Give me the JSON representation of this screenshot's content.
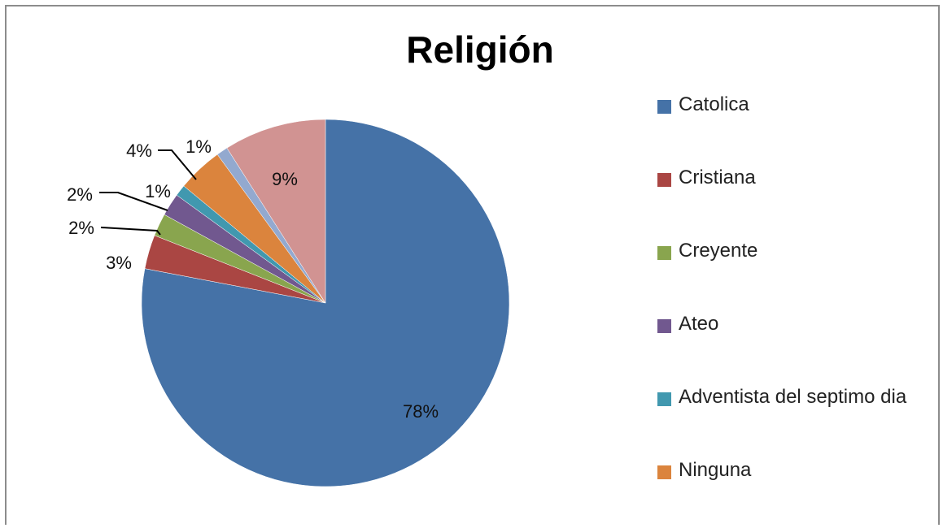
{
  "chart_data": {
    "type": "pie",
    "title": "Religión",
    "legend_position": "right",
    "series": [
      {
        "name": "Catolica",
        "value": 78,
        "label": "78%",
        "color": "#4572A7"
      },
      {
        "name": "Cristiana",
        "value": 3,
        "label": "3%",
        "color": "#AA4643"
      },
      {
        "name": "Creyente",
        "value": 2,
        "label": "2%",
        "color": "#89A54E"
      },
      {
        "name": "Ateo",
        "value": 2,
        "label": "2%",
        "color": "#71588F"
      },
      {
        "name": "Adventista del septimo dia",
        "value": 1,
        "label": "1%",
        "color": "#4198AF"
      },
      {
        "name": "Ninguna",
        "value": 4,
        "label": "4%",
        "color": "#DB843D"
      },
      {
        "name": "",
        "value": 1,
        "label": "1%",
        "color": "#93A9CF"
      },
      {
        "name": "",
        "value": 9,
        "label": "9%",
        "color": "#D19392"
      }
    ]
  }
}
